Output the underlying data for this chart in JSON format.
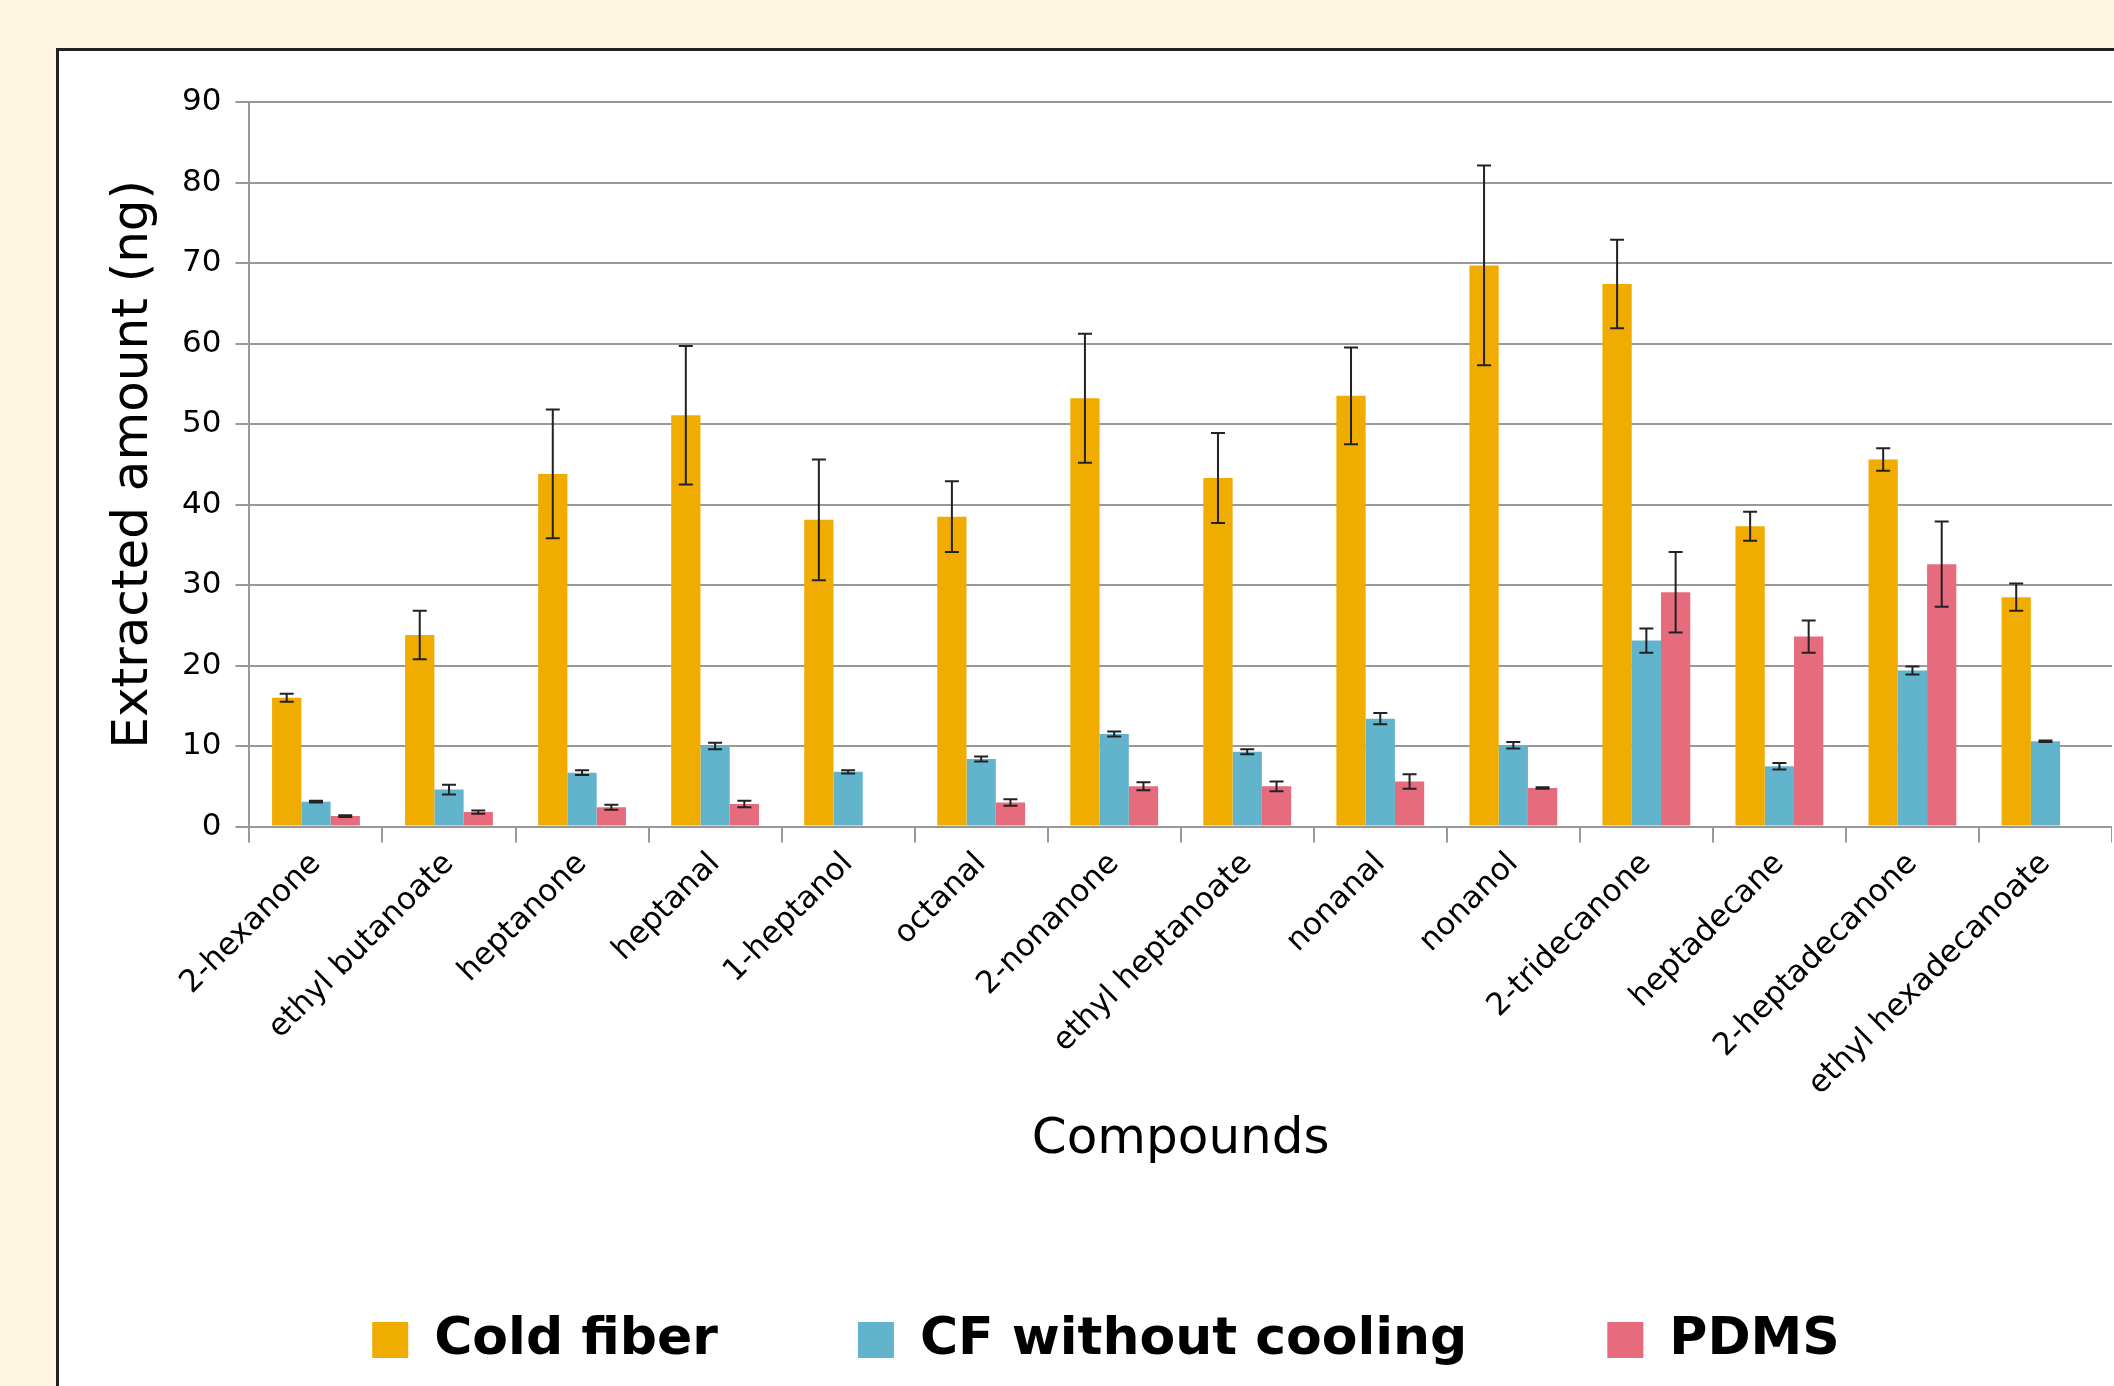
{
  "chart_data": {
    "type": "bar",
    "xlabel": "Compounds",
    "ylabel": "Extracted amount (ng)",
    "categories": [
      "2-hexanone",
      "ethyl butanoate",
      "heptanone",
      "heptanal",
      "1-heptanol",
      "octanal",
      "2-nonanone",
      "ethyl heptanoate",
      "nonanal",
      "nonanol",
      "2-tridecanone",
      "heptadecane",
      "2-heptadecanone",
      "ethyl hexadecanoate"
    ],
    "series": [
      {
        "name": "Cold fiber",
        "color": "#f0ac00",
        "values": [
          16.0,
          23.8,
          43.8,
          51.1,
          38.1,
          38.5,
          53.2,
          43.3,
          53.5,
          69.7,
          67.4,
          37.3,
          45.6,
          28.5
        ],
        "errors": [
          0.5,
          3.0,
          8.0,
          8.6,
          7.5,
          4.4,
          8.0,
          5.6,
          6.0,
          12.4,
          5.5,
          1.8,
          1.4,
          1.7
        ]
      },
      {
        "name": "CF without cooling",
        "color": "#62b4cc",
        "values": [
          3.1,
          4.6,
          6.7,
          10.0,
          6.8,
          8.4,
          11.5,
          9.3,
          13.4,
          10.1,
          23.1,
          7.5,
          19.4,
          10.6
        ],
        "errors": [
          0.1,
          0.6,
          0.3,
          0.4,
          0.2,
          0.3,
          0.3,
          0.3,
          0.7,
          0.4,
          1.5,
          0.4,
          0.5,
          0.1
        ]
      },
      {
        "name": "PDMS",
        "color": "#e66c7d",
        "values": [
          1.3,
          1.8,
          2.4,
          2.8,
          null,
          3.0,
          5.0,
          5.0,
          5.6,
          4.8,
          29.1,
          23.6,
          32.6,
          null
        ],
        "errors": [
          0.1,
          0.2,
          0.3,
          0.4,
          null,
          0.4,
          0.5,
          0.6,
          0.9,
          0.1,
          5.0,
          2.0,
          5.3,
          null
        ]
      }
    ],
    "ylim": [
      0,
      90
    ],
    "yticks": [
      0,
      10,
      20,
      30,
      40,
      50,
      60,
      70,
      80,
      90
    ],
    "grid": "y",
    "legend": "bottom"
  }
}
